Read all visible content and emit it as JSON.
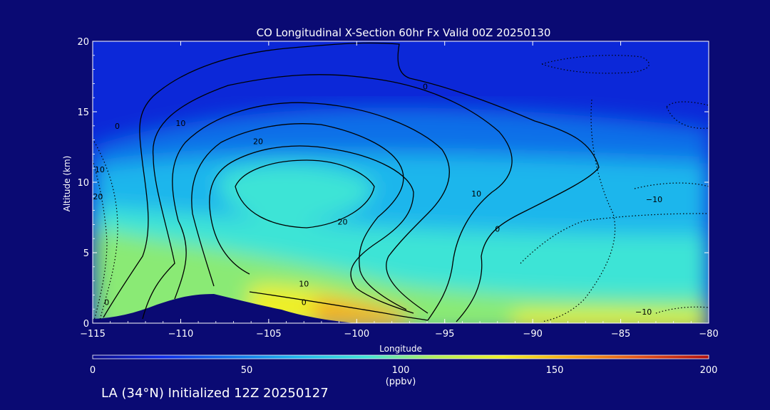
{
  "chart_data": {
    "type": "contour",
    "title": "CO Longitudinal X-Section 60hr  Fx Valid 00Z 20250130",
    "xlabel": "Longitude",
    "ylabel": "Altitude (km)",
    "xlim": [
      -115,
      -80
    ],
    "ylim": [
      0,
      20
    ],
    "xticks": [
      -115,
      -110,
      -105,
      -100,
      -95,
      -90,
      -85,
      -80
    ],
    "xtick_labels": [
      "−115",
      "−110",
      "−105",
      "−100",
      "−95",
      "−90",
      "−85",
      "−80"
    ],
    "yticks": [
      0,
      5,
      10,
      15,
      20
    ],
    "ytick_labels": [
      "0",
      "5",
      "10",
      "15",
      "20"
    ],
    "colorbar": {
      "range": [
        0,
        200
      ],
      "ticks": [
        0,
        50,
        100,
        150,
        200
      ],
      "tick_labels": [
        "0",
        "50",
        "100",
        "150",
        "200"
      ],
      "unit": "(ppbv)",
      "colors": [
        "#0a0a8c",
        "#0c28e6",
        "#0f6fe8",
        "#1fb6ec",
        "#3ee4d6",
        "#b0ef55",
        "#f0f020",
        "#f4a312",
        "#e0501a",
        "#b00e0e"
      ]
    },
    "contour_labels": [
      {
        "text": "0",
        "lon": -103.0,
        "alt": 1.5
      },
      {
        "text": "0",
        "lon": -96.1,
        "alt": 16.8
      },
      {
        "text": "0",
        "lon": -113.6,
        "alt": 14.0
      },
      {
        "text": "0",
        "lon": -114.2,
        "alt": 1.5
      },
      {
        "text": "0",
        "lon": -92.0,
        "alt": 6.7
      },
      {
        "text": "10",
        "lon": -110.0,
        "alt": 14.2
      },
      {
        "text": "10",
        "lon": -114.6,
        "alt": 10.9
      },
      {
        "text": "10",
        "lon": -103.0,
        "alt": 2.8
      },
      {
        "text": "10",
        "lon": -93.2,
        "alt": 9.2
      },
      {
        "text": "20",
        "lon": -105.6,
        "alt": 12.9
      },
      {
        "text": "20",
        "lon": -100.8,
        "alt": 7.2
      },
      {
        "text": "20",
        "lon": -114.7,
        "alt": 9.0
      },
      {
        "text": "−10",
        "lon": -83.1,
        "alt": 8.8
      },
      {
        "text": "−10",
        "lon": -83.7,
        "alt": 0.8
      }
    ]
  },
  "footer": "LA (34°N) Initialized 12Z 20250127"
}
